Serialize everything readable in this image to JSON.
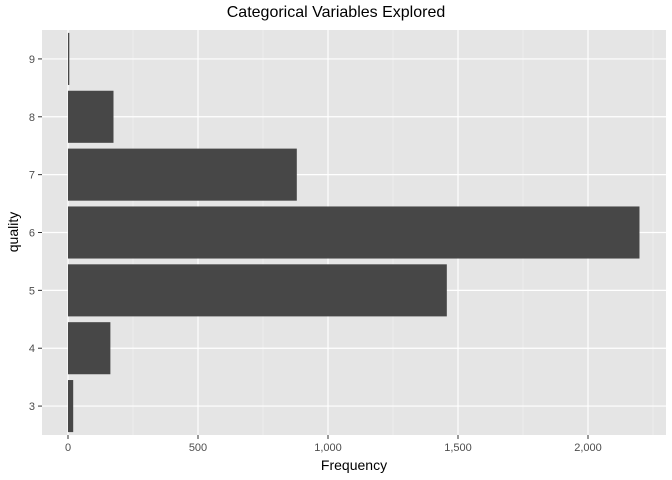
{
  "chart_data": {
    "type": "bar",
    "orientation": "horizontal",
    "title": "Categorical Variables Explored",
    "xlabel": "Frequency",
    "ylabel": "quality",
    "categories": [
      "3",
      "4",
      "5",
      "6",
      "7",
      "8",
      "9"
    ],
    "values": [
      20,
      163,
      1457,
      2198,
      880,
      175,
      5
    ],
    "xlim": [
      -100,
      2300
    ],
    "xticks": [
      0,
      500,
      1000,
      1500,
      2000
    ],
    "xtick_labels": [
      "0",
      "500",
      "1,000",
      "1,500",
      "2,000"
    ],
    "grid": true,
    "legend": "none",
    "colors": {
      "bar": "#474747",
      "panel": "#e5e5e5",
      "grid_major": "#ffffff",
      "grid_minor": "#f2f2f2"
    }
  }
}
